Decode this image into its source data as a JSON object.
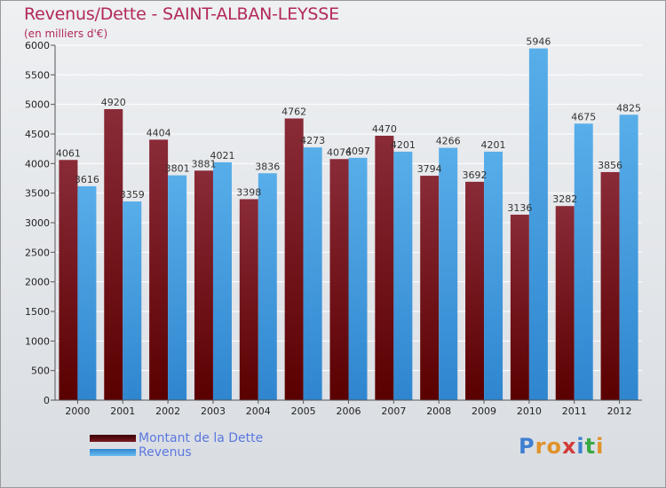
{
  "header": {
    "title": "Revenus/Dette - SAINT-ALBAN-LEYSSE",
    "subtitle": "(en milliers d'€)"
  },
  "legend": {
    "dette": "Montant de la Dette",
    "revenus": "Revenus"
  },
  "logo": {
    "text": "Proxiti"
  },
  "colors": {
    "dette_dark": "#5a0000",
    "dette_light": "#8a2b38",
    "revenus_dark": "#2f86cf",
    "revenus_light": "#58aee9",
    "title": "#b2285a",
    "legend_text": "#5b78e0"
  },
  "chart_data": {
    "type": "bar",
    "title": "Revenus/Dette - SAINT-ALBAN-LEYSSE",
    "ylabel": "(en milliers d'€)",
    "xlabel": "",
    "ylim": [
      0,
      6000
    ],
    "yticks": [
      0,
      500,
      1000,
      1500,
      2000,
      2500,
      3000,
      3500,
      4000,
      4500,
      5000,
      5500,
      6000
    ],
    "grid": true,
    "legend_position": "bottom-left",
    "categories": [
      "2000",
      "2001",
      "2002",
      "2003",
      "2004",
      "2005",
      "2006",
      "2007",
      "2008",
      "2009",
      "2010",
      "2011",
      "2012"
    ],
    "series": [
      {
        "name": "Montant de la Dette",
        "values": [
          4061,
          4920,
          4404,
          3881,
          3398,
          4762,
          4076,
          4470,
          3794,
          3692,
          3136,
          3282,
          3856
        ]
      },
      {
        "name": "Revenus",
        "values": [
          3616,
          3359,
          3801,
          4021,
          3836,
          4273,
          4097,
          4201,
          4266,
          4201,
          5946,
          4675,
          4825
        ]
      }
    ]
  }
}
